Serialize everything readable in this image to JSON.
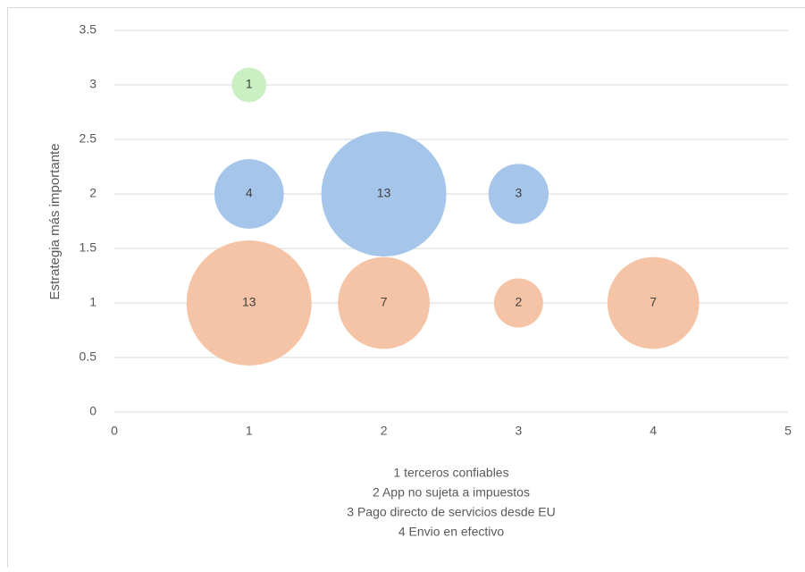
{
  "chart_data": {
    "type": "bubble",
    "ylabel": "Estrategia  más importante",
    "xlabel": [
      "1 terceros confiables",
      "2 App no sujeta a impuestos",
      "3 Pago directo de servicios desde EU",
      "4 Envio en efectivo"
    ],
    "xlim": [
      0,
      5
    ],
    "xticks": [
      0,
      1,
      2,
      3,
      4,
      5
    ],
    "ylim": [
      0,
      3.5
    ],
    "yticks": [
      0,
      0.5,
      1,
      1.5,
      2,
      2.5,
      3,
      3.5
    ],
    "grid": true,
    "series": [
      {
        "color": "#f5c3a5",
        "x": [
          1,
          2,
          3,
          4
        ],
        "values": [
          1,
          1,
          1,
          1
        ],
        "sizes": [
          13,
          7,
          2,
          7
        ]
      },
      {
        "color": "#a5c6ea",
        "x": [
          1,
          2,
          3
        ],
        "values": [
          2,
          2,
          2
        ],
        "sizes": [
          4,
          13,
          3
        ]
      },
      {
        "color": "#c9efc3",
        "x": [
          1
        ],
        "values": [
          3
        ],
        "sizes": [
          1
        ]
      }
    ]
  }
}
